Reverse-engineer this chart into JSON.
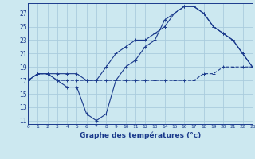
{
  "title": "Graphe des températures (°c)",
  "bg_color": "#cce8f0",
  "grid_color": "#aaccdd",
  "line_color": "#1a3a8c",
  "line1": [
    17,
    18,
    18,
    17,
    17,
    17,
    17,
    17,
    17,
    17,
    17,
    17,
    17,
    17,
    17,
    17,
    17,
    17,
    18,
    18,
    19,
    19,
    19,
    19
  ],
  "line2": [
    17,
    18,
    18,
    17,
    16,
    16,
    12,
    11,
    12,
    17,
    19,
    20,
    22,
    23,
    26,
    27,
    28,
    28,
    27,
    25,
    24,
    23,
    21,
    19
  ],
  "line3": [
    17,
    18,
    18,
    18,
    18,
    18,
    17,
    17,
    19,
    21,
    22,
    23,
    23,
    24,
    25,
    27,
    28,
    28,
    27,
    25,
    24,
    23,
    21,
    19
  ],
  "xlim": [
    0,
    23
  ],
  "ylim": [
    10.5,
    28.5
  ],
  "yticks": [
    11,
    13,
    15,
    17,
    19,
    21,
    23,
    25,
    27
  ],
  "xticks": [
    0,
    1,
    2,
    3,
    4,
    5,
    6,
    7,
    8,
    9,
    10,
    11,
    12,
    13,
    14,
    15,
    16,
    17,
    18,
    19,
    20,
    21,
    22,
    23
  ]
}
